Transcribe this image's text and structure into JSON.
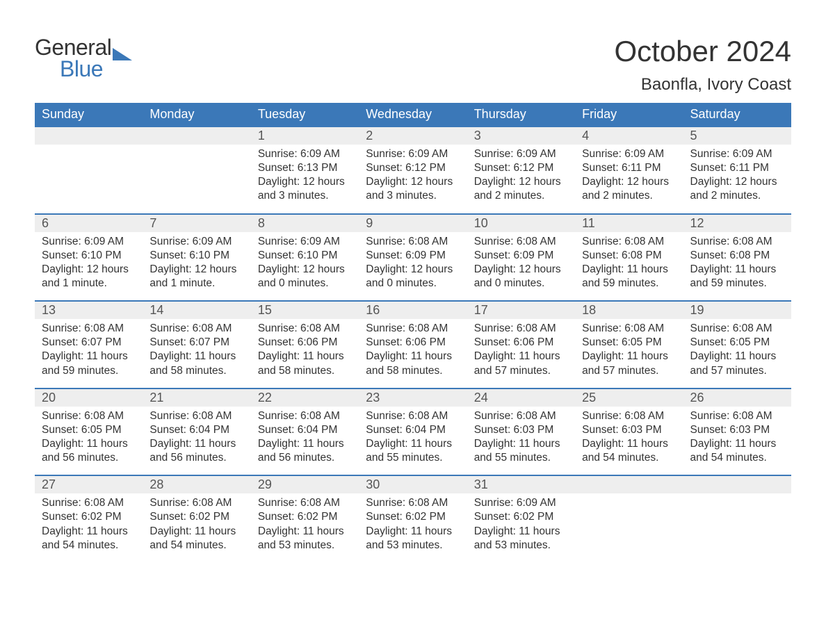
{
  "logo": {
    "text1": "General",
    "text2": "Blue",
    "brand_color": "#3b78b8"
  },
  "title": "October 2024",
  "location": "Baonfla, Ivory Coast",
  "colors": {
    "header_bg": "#3b78b8",
    "header_text": "#ffffff",
    "daynum_bg": "#eeeeee",
    "daynum_border": "#3b78b8",
    "body_text": "#333333",
    "background": "#ffffff"
  },
  "typography": {
    "title_size": 42,
    "location_size": 24,
    "weekday_size": 18,
    "daynum_size": 18,
    "cell_size": 15.5
  },
  "weekdays": [
    "Sunday",
    "Monday",
    "Tuesday",
    "Wednesday",
    "Thursday",
    "Friday",
    "Saturday"
  ],
  "weeks": [
    [
      null,
      null,
      {
        "n": "1",
        "sunrise": "6:09 AM",
        "sunset": "6:13 PM",
        "daylight": "12 hours and 3 minutes."
      },
      {
        "n": "2",
        "sunrise": "6:09 AM",
        "sunset": "6:12 PM",
        "daylight": "12 hours and 3 minutes."
      },
      {
        "n": "3",
        "sunrise": "6:09 AM",
        "sunset": "6:12 PM",
        "daylight": "12 hours and 2 minutes."
      },
      {
        "n": "4",
        "sunrise": "6:09 AM",
        "sunset": "6:11 PM",
        "daylight": "12 hours and 2 minutes."
      },
      {
        "n": "5",
        "sunrise": "6:09 AM",
        "sunset": "6:11 PM",
        "daylight": "12 hours and 2 minutes."
      }
    ],
    [
      {
        "n": "6",
        "sunrise": "6:09 AM",
        "sunset": "6:10 PM",
        "daylight": "12 hours and 1 minute."
      },
      {
        "n": "7",
        "sunrise": "6:09 AM",
        "sunset": "6:10 PM",
        "daylight": "12 hours and 1 minute."
      },
      {
        "n": "8",
        "sunrise": "6:09 AM",
        "sunset": "6:10 PM",
        "daylight": "12 hours and 0 minutes."
      },
      {
        "n": "9",
        "sunrise": "6:08 AM",
        "sunset": "6:09 PM",
        "daylight": "12 hours and 0 minutes."
      },
      {
        "n": "10",
        "sunrise": "6:08 AM",
        "sunset": "6:09 PM",
        "daylight": "12 hours and 0 minutes."
      },
      {
        "n": "11",
        "sunrise": "6:08 AM",
        "sunset": "6:08 PM",
        "daylight": "11 hours and 59 minutes."
      },
      {
        "n": "12",
        "sunrise": "6:08 AM",
        "sunset": "6:08 PM",
        "daylight": "11 hours and 59 minutes."
      }
    ],
    [
      {
        "n": "13",
        "sunrise": "6:08 AM",
        "sunset": "6:07 PM",
        "daylight": "11 hours and 59 minutes."
      },
      {
        "n": "14",
        "sunrise": "6:08 AM",
        "sunset": "6:07 PM",
        "daylight": "11 hours and 58 minutes."
      },
      {
        "n": "15",
        "sunrise": "6:08 AM",
        "sunset": "6:06 PM",
        "daylight": "11 hours and 58 minutes."
      },
      {
        "n": "16",
        "sunrise": "6:08 AM",
        "sunset": "6:06 PM",
        "daylight": "11 hours and 58 minutes."
      },
      {
        "n": "17",
        "sunrise": "6:08 AM",
        "sunset": "6:06 PM",
        "daylight": "11 hours and 57 minutes."
      },
      {
        "n": "18",
        "sunrise": "6:08 AM",
        "sunset": "6:05 PM",
        "daylight": "11 hours and 57 minutes."
      },
      {
        "n": "19",
        "sunrise": "6:08 AM",
        "sunset": "6:05 PM",
        "daylight": "11 hours and 57 minutes."
      }
    ],
    [
      {
        "n": "20",
        "sunrise": "6:08 AM",
        "sunset": "6:05 PM",
        "daylight": "11 hours and 56 minutes."
      },
      {
        "n": "21",
        "sunrise": "6:08 AM",
        "sunset": "6:04 PM",
        "daylight": "11 hours and 56 minutes."
      },
      {
        "n": "22",
        "sunrise": "6:08 AM",
        "sunset": "6:04 PM",
        "daylight": "11 hours and 56 minutes."
      },
      {
        "n": "23",
        "sunrise": "6:08 AM",
        "sunset": "6:04 PM",
        "daylight": "11 hours and 55 minutes."
      },
      {
        "n": "24",
        "sunrise": "6:08 AM",
        "sunset": "6:03 PM",
        "daylight": "11 hours and 55 minutes."
      },
      {
        "n": "25",
        "sunrise": "6:08 AM",
        "sunset": "6:03 PM",
        "daylight": "11 hours and 54 minutes."
      },
      {
        "n": "26",
        "sunrise": "6:08 AM",
        "sunset": "6:03 PM",
        "daylight": "11 hours and 54 minutes."
      }
    ],
    [
      {
        "n": "27",
        "sunrise": "6:08 AM",
        "sunset": "6:02 PM",
        "daylight": "11 hours and 54 minutes."
      },
      {
        "n": "28",
        "sunrise": "6:08 AM",
        "sunset": "6:02 PM",
        "daylight": "11 hours and 54 minutes."
      },
      {
        "n": "29",
        "sunrise": "6:08 AM",
        "sunset": "6:02 PM",
        "daylight": "11 hours and 53 minutes."
      },
      {
        "n": "30",
        "sunrise": "6:08 AM",
        "sunset": "6:02 PM",
        "daylight": "11 hours and 53 minutes."
      },
      {
        "n": "31",
        "sunrise": "6:09 AM",
        "sunset": "6:02 PM",
        "daylight": "11 hours and 53 minutes."
      },
      null,
      null
    ]
  ],
  "labels": {
    "sunrise": "Sunrise:",
    "sunset": "Sunset:",
    "daylight": "Daylight:"
  }
}
